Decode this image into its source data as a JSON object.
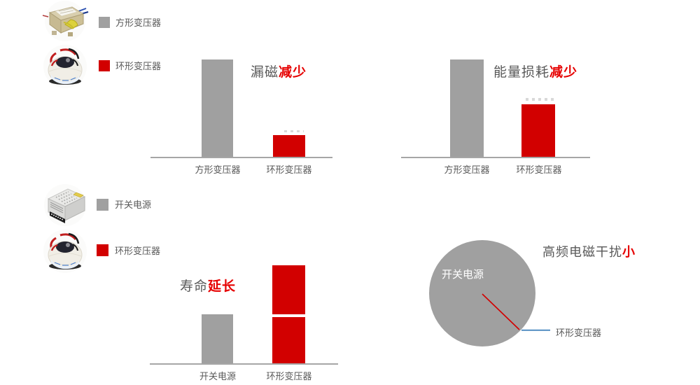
{
  "colors": {
    "gray": "#a0a0a0",
    "red": "#d20000",
    "accent_red": "#e60000",
    "text_gray": "#595959",
    "axis_gray": "#a6a6a6",
    "callout_blue": "#2e75b6",
    "white": "#ffffff"
  },
  "legend_top": {
    "items": [
      {
        "image": "ei-transformer-photo",
        "swatch_color": "gray",
        "label": "方形变压器"
      },
      {
        "image": "toroidal-transformer-photo",
        "swatch_color": "red",
        "label": "环形变压器"
      }
    ]
  },
  "legend_bottom": {
    "items": [
      {
        "image": "switching-power-supply-photo",
        "swatch_color": "gray",
        "label": "开关电源"
      },
      {
        "image": "toroidal-transformer-photo",
        "swatch_color": "red",
        "label": "环形变压器"
      }
    ]
  },
  "chart_data": [
    {
      "id": "magnetic-leakage",
      "type": "bar",
      "title_plain": "漏磁",
      "title_accent": "减少",
      "categories": [
        "方形变压器",
        "环形变压器"
      ],
      "values": [
        100,
        22
      ],
      "colors": [
        "#a0a0a0",
        "#d20000"
      ],
      "ylim": [
        0,
        100
      ],
      "grid": false,
      "legend_position": "none",
      "note": "relative units; gray reference bar = 100"
    },
    {
      "id": "energy-loss",
      "type": "bar",
      "title_plain": "能量损耗",
      "title_accent": "减少",
      "categories": [
        "方形变压器",
        "环形变压器"
      ],
      "values": [
        100,
        54
      ],
      "colors": [
        "#a0a0a0",
        "#d20000"
      ],
      "ylim": [
        0,
        100
      ],
      "grid": false,
      "legend_position": "none",
      "note": "relative units; gray reference bar = 100"
    },
    {
      "id": "lifespan",
      "type": "bar",
      "title_plain": "寿命",
      "title_accent": "延长",
      "categories": [
        "开关电源",
        "环形变压器"
      ],
      "values": [
        50,
        100
      ],
      "colors": [
        "#a0a0a0",
        "#d20000"
      ],
      "ylim": [
        0,
        100
      ],
      "grid": false,
      "legend_position": "none",
      "note": "red bar is split by a white divider at value 50 (equal to gray bar height) to show doubled lifespan"
    },
    {
      "id": "high-frequency-emi",
      "type": "pie",
      "title_plain": "高频电磁干扰",
      "title_accent": "小",
      "slices": [
        {
          "label": "开关电源",
          "value": 99,
          "color": "#a0a0a0"
        },
        {
          "label": "环形变压器",
          "value": 1,
          "color": "#d20000"
        }
      ],
      "legend_position": "callout-right",
      "note": "toroidal transformer slice is a hairline sliver marked by a red radius line with blue leader"
    }
  ]
}
